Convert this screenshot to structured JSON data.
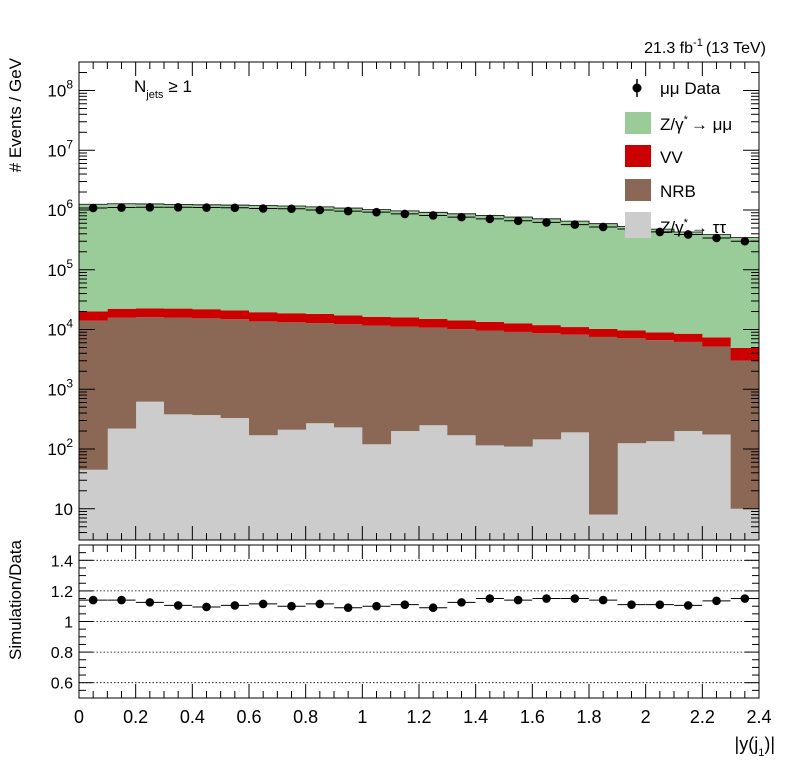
{
  "header": {
    "lumi": "21.3 fb",
    "lumi_exp": "-1",
    "energy": "(13 TeV)",
    "selection_main": "N",
    "selection_sub": "jets",
    "selection_rest": "≥ 1"
  },
  "chart_data": [
    {
      "type": "bar",
      "stacked": true,
      "log_y": true,
      "ylabel": "# Events / GeV",
      "xlim": [
        0,
        2.4
      ],
      "ylim": [
        3,
        300000000
      ],
      "bin_edges": [
        0,
        0.1,
        0.2,
        0.3,
        0.4,
        0.5,
        0.6,
        0.7,
        0.8,
        0.9,
        1.0,
        1.1,
        1.2,
        1.3,
        1.4,
        1.5,
        1.6,
        1.7,
        1.8,
        1.9,
        2.0,
        2.1,
        2.2,
        2.3,
        2.4
      ],
      "y_tick_labels": [
        "10",
        "10",
        "10",
        "10",
        "10",
        "10",
        "10",
        "10"
      ],
      "y_tick_exponents": [
        "",
        "2",
        "3",
        "4",
        "5",
        "6",
        "7",
        "8"
      ],
      "y_tick_values": [
        10,
        100,
        1000,
        10000,
        100000,
        1000000,
        10000000,
        100000000
      ],
      "series": [
        {
          "name": "Z/γ* → ττ",
          "legend_label": "Z/γ",
          "legend_sup": "*",
          "legend_tail": "→ ττ",
          "color": "#cccccc",
          "values": [
            45,
            220,
            620,
            380,
            370,
            330,
            170,
            210,
            270,
            230,
            120,
            200,
            250,
            170,
            115,
            110,
            145,
            190,
            8,
            125,
            135,
            200,
            175,
            10
          ]
        },
        {
          "name": "NRB",
          "legend_label": "NRB",
          "color": "#8b6756",
          "values": [
            14000,
            15500,
            15500,
            15500,
            15000,
            14500,
            13500,
            13000,
            12500,
            12000,
            11500,
            11000,
            10500,
            10000,
            9500,
            9000,
            8500,
            8000,
            7500,
            7000,
            6500,
            6000,
            5000,
            3000
          ]
        },
        {
          "name": "VV",
          "legend_label": "VV",
          "color": "#cc0000",
          "values": [
            6000,
            6500,
            6500,
            6500,
            6500,
            6000,
            5800,
            5500,
            5500,
            5000,
            4700,
            4700,
            4300,
            4000,
            3800,
            3500,
            3200,
            2800,
            2700,
            2500,
            2300,
            2300,
            2200,
            1900
          ]
        },
        {
          "name": "Z/γ* → μμ",
          "legend_label": "Z/γ",
          "legend_sup": "*",
          "legend_tail": "→ μμ",
          "color": "#99cc99",
          "values": [
            1230000,
            1250000,
            1240000,
            1220000,
            1200000,
            1190000,
            1170000,
            1150000,
            1110000,
            1060000,
            1000000,
            950000,
            900000,
            850000,
            800000,
            750000,
            700000,
            640000,
            580000,
            520000,
            470000,
            420000,
            380000,
            340000
          ]
        }
      ],
      "data": {
        "name": "μμ Data",
        "legend_label": "μμ Data",
        "x": [
          0.05,
          0.15,
          0.25,
          0.35,
          0.45,
          0.55,
          0.65,
          0.75,
          0.85,
          0.95,
          1.05,
          1.15,
          1.25,
          1.35,
          1.45,
          1.55,
          1.65,
          1.75,
          1.85,
          1.95,
          2.05,
          2.15,
          2.25,
          2.35
        ],
        "y": [
          1080000,
          1100000,
          1110000,
          1110000,
          1100000,
          1090000,
          1060000,
          1050000,
          1000000,
          960000,
          920000,
          860000,
          810000,
          760000,
          710000,
          660000,
          620000,
          570000,
          520000,
          480000,
          430000,
          390000,
          340000,
          300000
        ]
      }
    },
    {
      "type": "scatter",
      "ylabel": "Simulation/Data",
      "xlabel": "|y(j",
      "xlabel_sub": "1",
      "xlabel_tail": ")|",
      "xlim": [
        0,
        2.4
      ],
      "ylim": [
        0.5,
        1.5
      ],
      "x_tick_labels": [
        "0",
        "0.2",
        "0.4",
        "0.6",
        "0.8",
        "1",
        "1.2",
        "1.4",
        "1.6",
        "1.8",
        "2",
        "2.2",
        "2.4"
      ],
      "x_tick_values": [
        0,
        0.2,
        0.4,
        0.6,
        0.8,
        1.0,
        1.2,
        1.4,
        1.6,
        1.8,
        2.0,
        2.2,
        2.4
      ],
      "y_tick_labels": [
        "0.6",
        "0.8",
        "1",
        "1.2",
        "1.4"
      ],
      "y_tick_values": [
        0.6,
        0.8,
        1.0,
        1.2,
        1.4
      ],
      "grid_y": [
        0.6,
        0.8,
        1.0,
        1.2,
        1.4
      ],
      "x": [
        0.05,
        0.15,
        0.25,
        0.35,
        0.45,
        0.55,
        0.65,
        0.75,
        0.85,
        0.95,
        1.05,
        1.15,
        1.25,
        1.35,
        1.45,
        1.55,
        1.65,
        1.75,
        1.85,
        1.95,
        2.05,
        2.15,
        2.25,
        2.35
      ],
      "y": [
        1.14,
        1.14,
        1.125,
        1.105,
        1.095,
        1.105,
        1.115,
        1.1,
        1.115,
        1.09,
        1.1,
        1.11,
        1.09,
        1.125,
        1.15,
        1.14,
        1.15,
        1.15,
        1.14,
        1.11,
        1.11,
        1.105,
        1.135,
        1.15
      ]
    }
  ]
}
